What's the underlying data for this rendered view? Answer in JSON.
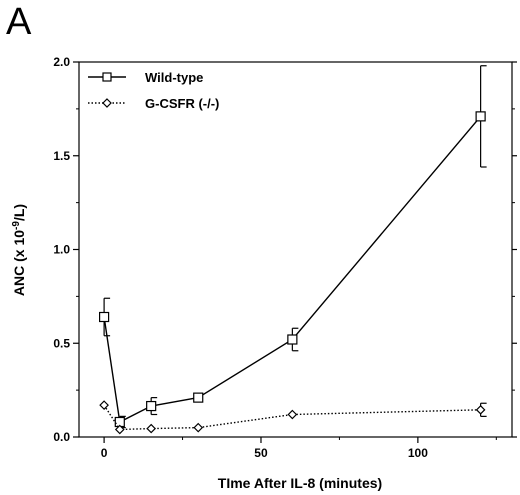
{
  "panel_label": "A",
  "chart_data": {
    "type": "line",
    "title": "",
    "xlabel": "TIme After IL-8 (minutes)",
    "ylabel_main": "ANC (x 10",
    "ylabel_sup": "-9",
    "ylabel_tail": "/L)",
    "xlim": [
      -8,
      130
    ],
    "ylim": [
      0,
      2.0
    ],
    "xticks": [
      0,
      50,
      100
    ],
    "xtick_labels": [
      "0",
      "50",
      "100"
    ],
    "yticks": [
      0,
      0.5,
      1.0,
      1.5,
      2.0
    ],
    "ytick_labels": [
      "0.0",
      "0.5",
      "1.0",
      "1.5",
      "2.0"
    ],
    "grid": false,
    "legend_position": "top-left",
    "series": [
      {
        "name": "Wild-type",
        "marker": "square",
        "line_style": "solid",
        "x": [
          0,
          5,
          15,
          30,
          60,
          120
        ],
        "y": [
          0.64,
          0.08,
          0.165,
          0.21,
          0.52,
          1.71
        ],
        "err": [
          0.1,
          0.03,
          0.045,
          0.0,
          0.06,
          0.27
        ]
      },
      {
        "name": "G-CSFR (-/-)",
        "marker": "diamond",
        "line_style": "dotted",
        "x": [
          0,
          5,
          15,
          30,
          60,
          120
        ],
        "y": [
          0.17,
          0.04,
          0.045,
          0.05,
          0.12,
          0.145
        ],
        "err": [
          0.0,
          0.0,
          0.0,
          0.0,
          0.0,
          0.035
        ]
      }
    ]
  }
}
